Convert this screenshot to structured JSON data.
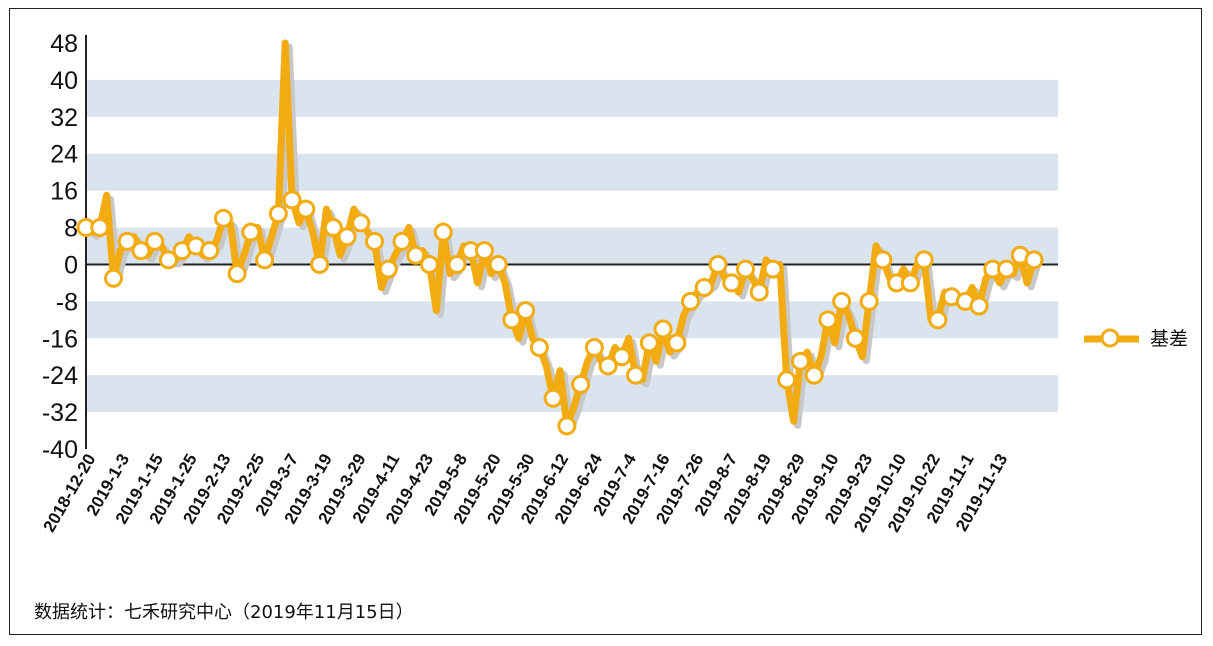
{
  "source_note": "数据统计：七禾研究中心（2019年11月15日）",
  "colors": {
    "series": "#f2ab11",
    "band": "#d9e4ee",
    "shadow": "#c8c8c8",
    "axis": "#222222"
  },
  "chart_data": {
    "type": "line",
    "title": "",
    "xlabel": "",
    "ylabel": "",
    "ylim": [
      -40,
      48
    ],
    "yticks": [
      48,
      40,
      32,
      24,
      16,
      8,
      0,
      -8,
      -16,
      -24,
      -32,
      -40
    ],
    "grid": "alternating horizontal bands",
    "legend_position": "right",
    "x_tick_labels": [
      "2018-12-20",
      "2019-1-3",
      "2019-1-15",
      "2019-1-25",
      "2019-2-13",
      "2019-2-25",
      "2019-3-7",
      "2019-3-19",
      "2019-3-29",
      "2019-4-11",
      "2019-4-23",
      "2019-5-8",
      "2019-5-20",
      "2019-5-30",
      "2019-6-12",
      "2019-6-24",
      "2019-7-4",
      "2019-7-16",
      "2019-7-26",
      "2019-8-7",
      "2019-8-19",
      "2019-8-29",
      "2019-9-10",
      "2019-9-23",
      "2019-10-10",
      "2019-10-22",
      "2019-11-1",
      "2019-11-13"
    ],
    "series": [
      {
        "name": "基差",
        "values": [
          8,
          7,
          8,
          15,
          -3,
          3,
          5,
          6,
          3,
          2,
          5,
          4,
          1,
          1,
          3,
          6,
          4,
          2,
          3,
          5,
          10,
          9,
          -2,
          2,
          7,
          8,
          1,
          6,
          11,
          48,
          14,
          9,
          12,
          7,
          0,
          12,
          8,
          2,
          6,
          12,
          9,
          7,
          5,
          -5,
          -1,
          2,
          5,
          8,
          2,
          3,
          0,
          -10,
          7,
          -2,
          0,
          4,
          3,
          -4,
          3,
          -2,
          0,
          -4,
          -12,
          -16,
          -10,
          -16,
          -18,
          -22,
          -29,
          -23,
          -35,
          -31,
          -26,
          -21,
          -18,
          -21,
          -22,
          -18,
          -20,
          -16,
          -24,
          -25,
          -17,
          -21,
          -14,
          -19,
          -17,
          -11,
          -8,
          -6,
          -5,
          -4,
          0,
          -3,
          -4,
          -6,
          -1,
          -3,
          -6,
          1,
          -1,
          0,
          -25,
          -34,
          -21,
          -19,
          -24,
          -20,
          -12,
          -17,
          -8,
          -11,
          -16,
          -20,
          -8,
          4,
          1,
          -3,
          -4,
          -1,
          -4,
          0,
          1,
          -12,
          -12,
          -6,
          -7,
          -7,
          -8,
          -5,
          -9,
          -3,
          -1,
          -4,
          -1,
          -2,
          2,
          -4,
          1
        ]
      }
    ]
  }
}
